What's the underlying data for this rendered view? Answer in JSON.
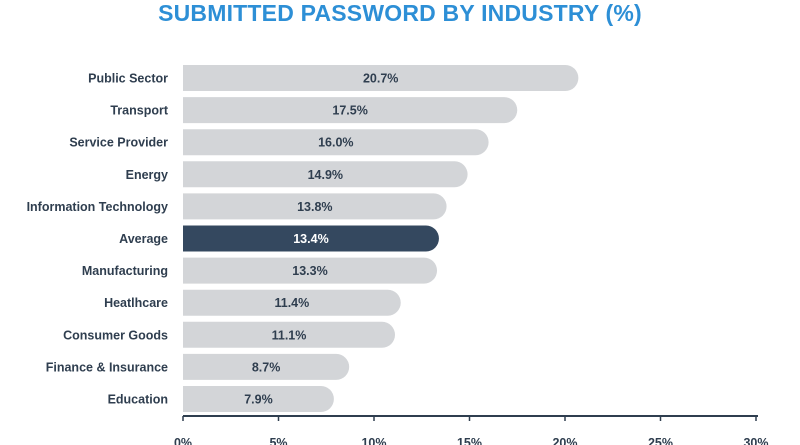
{
  "chart_data": {
    "type": "bar",
    "orientation": "horizontal",
    "title": "SUBMITTED PASSWORD BY INDUSTRY (%)",
    "categories": [
      "Public Sector",
      "Transport",
      "Service Provider",
      "Energy",
      "Information Technology",
      "Average",
      "Manufacturing",
      "Heatlhcare",
      "Consumer Goods",
      "Finance & Insurance",
      "Education"
    ],
    "values": [
      20.7,
      17.5,
      16.0,
      14.9,
      13.8,
      13.4,
      13.3,
      11.4,
      11.1,
      8.7,
      7.9
    ],
    "value_labels": [
      "20.7%",
      "17.5%",
      "16.0%",
      "14.9%",
      "13.8%",
      "13.4%",
      "13.3%",
      "11.4%",
      "11.1%",
      "8.7%",
      "7.9%"
    ],
    "highlight_category": "Average",
    "xlim": [
      0,
      30
    ],
    "xticks": [
      0,
      5,
      10,
      15,
      20,
      25,
      30
    ],
    "xtick_labels": [
      "0%",
      "5%",
      "10%",
      "15%",
      "20%",
      "25%",
      "30%"
    ],
    "grid": false,
    "legend": "none",
    "colors": {
      "title": "#2d8fd6",
      "bar": "#d3d5d8",
      "highlight_bar": "#34485f",
      "text": "#2f3e4f",
      "highlight_text": "#ffffff",
      "axis": "#2f3e4f"
    }
  }
}
